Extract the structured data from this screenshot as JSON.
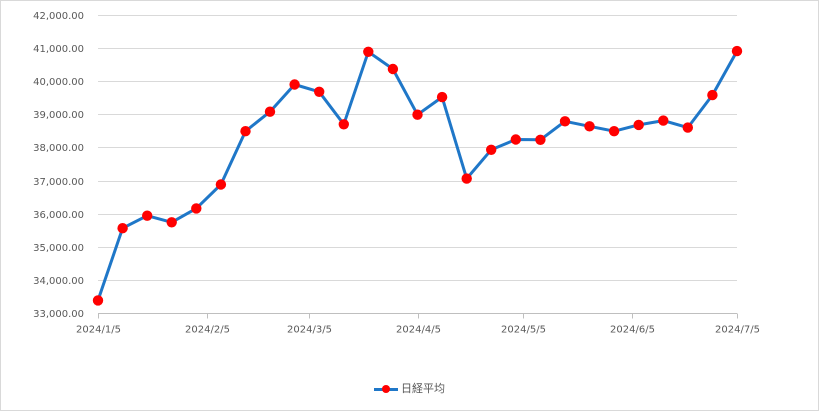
{
  "chart_data": {
    "type": "line",
    "title": "",
    "xlabel": "",
    "ylabel": "",
    "ylim": [
      33000,
      42000
    ],
    "grid": true,
    "legend_position": "bottom",
    "y_ticks": [
      "33,000.00",
      "34,000.00",
      "35,000.00",
      "36,000.00",
      "37,000.00",
      "38,000.00",
      "39,000.00",
      "40,000.00",
      "41,000.00",
      "42,000.00"
    ],
    "y_tick_values": [
      33000,
      34000,
      35000,
      36000,
      37000,
      38000,
      39000,
      40000,
      41000,
      42000
    ],
    "x_ticks": [
      "2024/1/5",
      "2024/2/5",
      "2024/3/5",
      "2024/4/5",
      "2024/5/5",
      "2024/6/5",
      "2024/7/5"
    ],
    "x_tick_dates": [
      "2024-01-05",
      "2024-02-05",
      "2024-03-05",
      "2024-04-05",
      "2024-05-05",
      "2024-06-05",
      "2024-07-05"
    ],
    "x_range": [
      "2024-01-05",
      "2024-07-05"
    ],
    "series": [
      {
        "name": "日経平均",
        "line_color": "#1f77c8",
        "marker_color": "#ff0000",
        "points": [
          {
            "x": "2024-01-05",
            "y": 33380
          },
          {
            "x": "2024-01-12",
            "y": 35560
          },
          {
            "x": "2024-01-19",
            "y": 35940
          },
          {
            "x": "2024-01-26",
            "y": 35740
          },
          {
            "x": "2024-02-02",
            "y": 36160
          },
          {
            "x": "2024-02-09",
            "y": 36880
          },
          {
            "x": "2024-02-16",
            "y": 38490
          },
          {
            "x": "2024-02-23",
            "y": 39080
          },
          {
            "x": "2024-03-01",
            "y": 39900
          },
          {
            "x": "2024-03-08",
            "y": 39680
          },
          {
            "x": "2024-03-15",
            "y": 38700
          },
          {
            "x": "2024-03-22",
            "y": 40890
          },
          {
            "x": "2024-03-29",
            "y": 40370
          },
          {
            "x": "2024-04-05",
            "y": 38990
          },
          {
            "x": "2024-04-12",
            "y": 39520
          },
          {
            "x": "2024-04-19",
            "y": 37060
          },
          {
            "x": "2024-04-26",
            "y": 37930
          },
          {
            "x": "2024-05-03",
            "y": 38240
          },
          {
            "x": "2024-05-10",
            "y": 38230
          },
          {
            "x": "2024-05-17",
            "y": 38790
          },
          {
            "x": "2024-05-24",
            "y": 38640
          },
          {
            "x": "2024-05-31",
            "y": 38490
          },
          {
            "x": "2024-06-07",
            "y": 38680
          },
          {
            "x": "2024-06-14",
            "y": 38810
          },
          {
            "x": "2024-06-21",
            "y": 38600
          },
          {
            "x": "2024-06-28",
            "y": 39580
          },
          {
            "x": "2024-07-05",
            "y": 40910
          }
        ]
      }
    ]
  }
}
